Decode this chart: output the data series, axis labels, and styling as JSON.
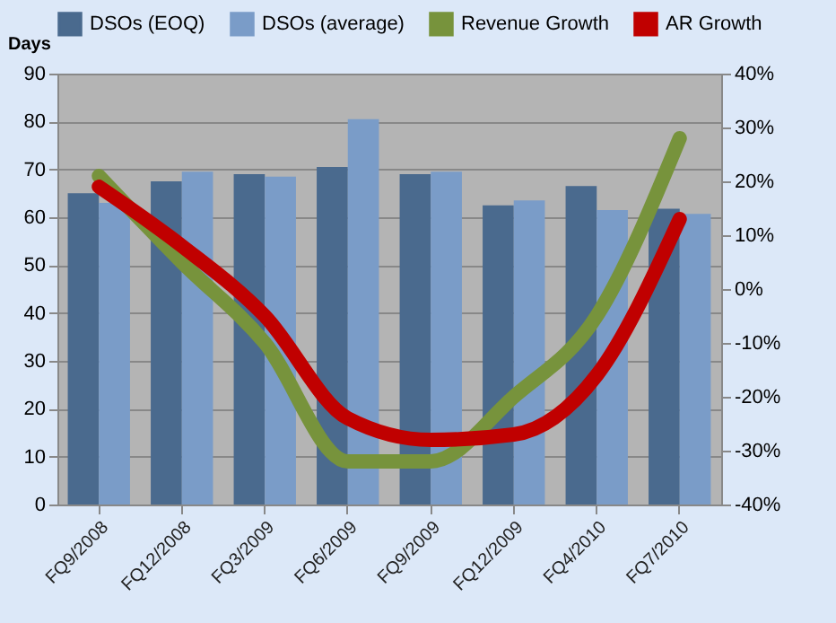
{
  "chart_data": {
    "type": "bar",
    "ylabel": "Days",
    "categories": [
      "FQ9/2008",
      "FQ12/2008",
      "FQ3/2009",
      "FQ6/2009",
      "FQ9/2009",
      "FQ12/2009",
      "FQ4/2010",
      "FQ7/2010"
    ],
    "series": [
      {
        "name": "DSOs (EOQ)",
        "color": "#4a6a8e",
        "values": [
          65,
          67.5,
          69,
          70.5,
          69,
          62.5,
          66.5,
          61.8
        ]
      },
      {
        "name": "DSOs (average)",
        "color": "#7a9cc8",
        "values": [
          63,
          69.5,
          68.5,
          80.5,
          69.5,
          63.5,
          61.5,
          60.7
        ]
      },
      {
        "name": "Revenue Growth",
        "type": "line",
        "axis": "y2",
        "color": "#77933c",
        "values": [
          21,
          5,
          -10,
          -32,
          -32,
          -20,
          -5,
          28
        ]
      },
      {
        "name": "AR Growth",
        "type": "line",
        "axis": "y2",
        "color": "#c00000",
        "values": [
          19,
          8,
          -5,
          -24,
          -28,
          -27,
          -16,
          13
        ]
      }
    ],
    "ylim": [
      0,
      90
    ],
    "yticks": [
      0,
      10,
      20,
      30,
      40,
      50,
      60,
      70,
      80,
      90
    ],
    "y2lim": [
      -40,
      40
    ],
    "y2ticks": [
      {
        "value": -40,
        "label": "-40%"
      },
      {
        "value": -30,
        "label": "-30%"
      },
      {
        "value": -20,
        "label": "-20%"
      },
      {
        "value": -10,
        "label": "-10%"
      },
      {
        "value": 0,
        "label": "0%"
      },
      {
        "value": 10,
        "label": "10%"
      },
      {
        "value": 20,
        "label": "20%"
      },
      {
        "value": 30,
        "label": "30%"
      },
      {
        "value": 40,
        "label": "40%"
      }
    ],
    "grid": "y",
    "legend": "top"
  }
}
